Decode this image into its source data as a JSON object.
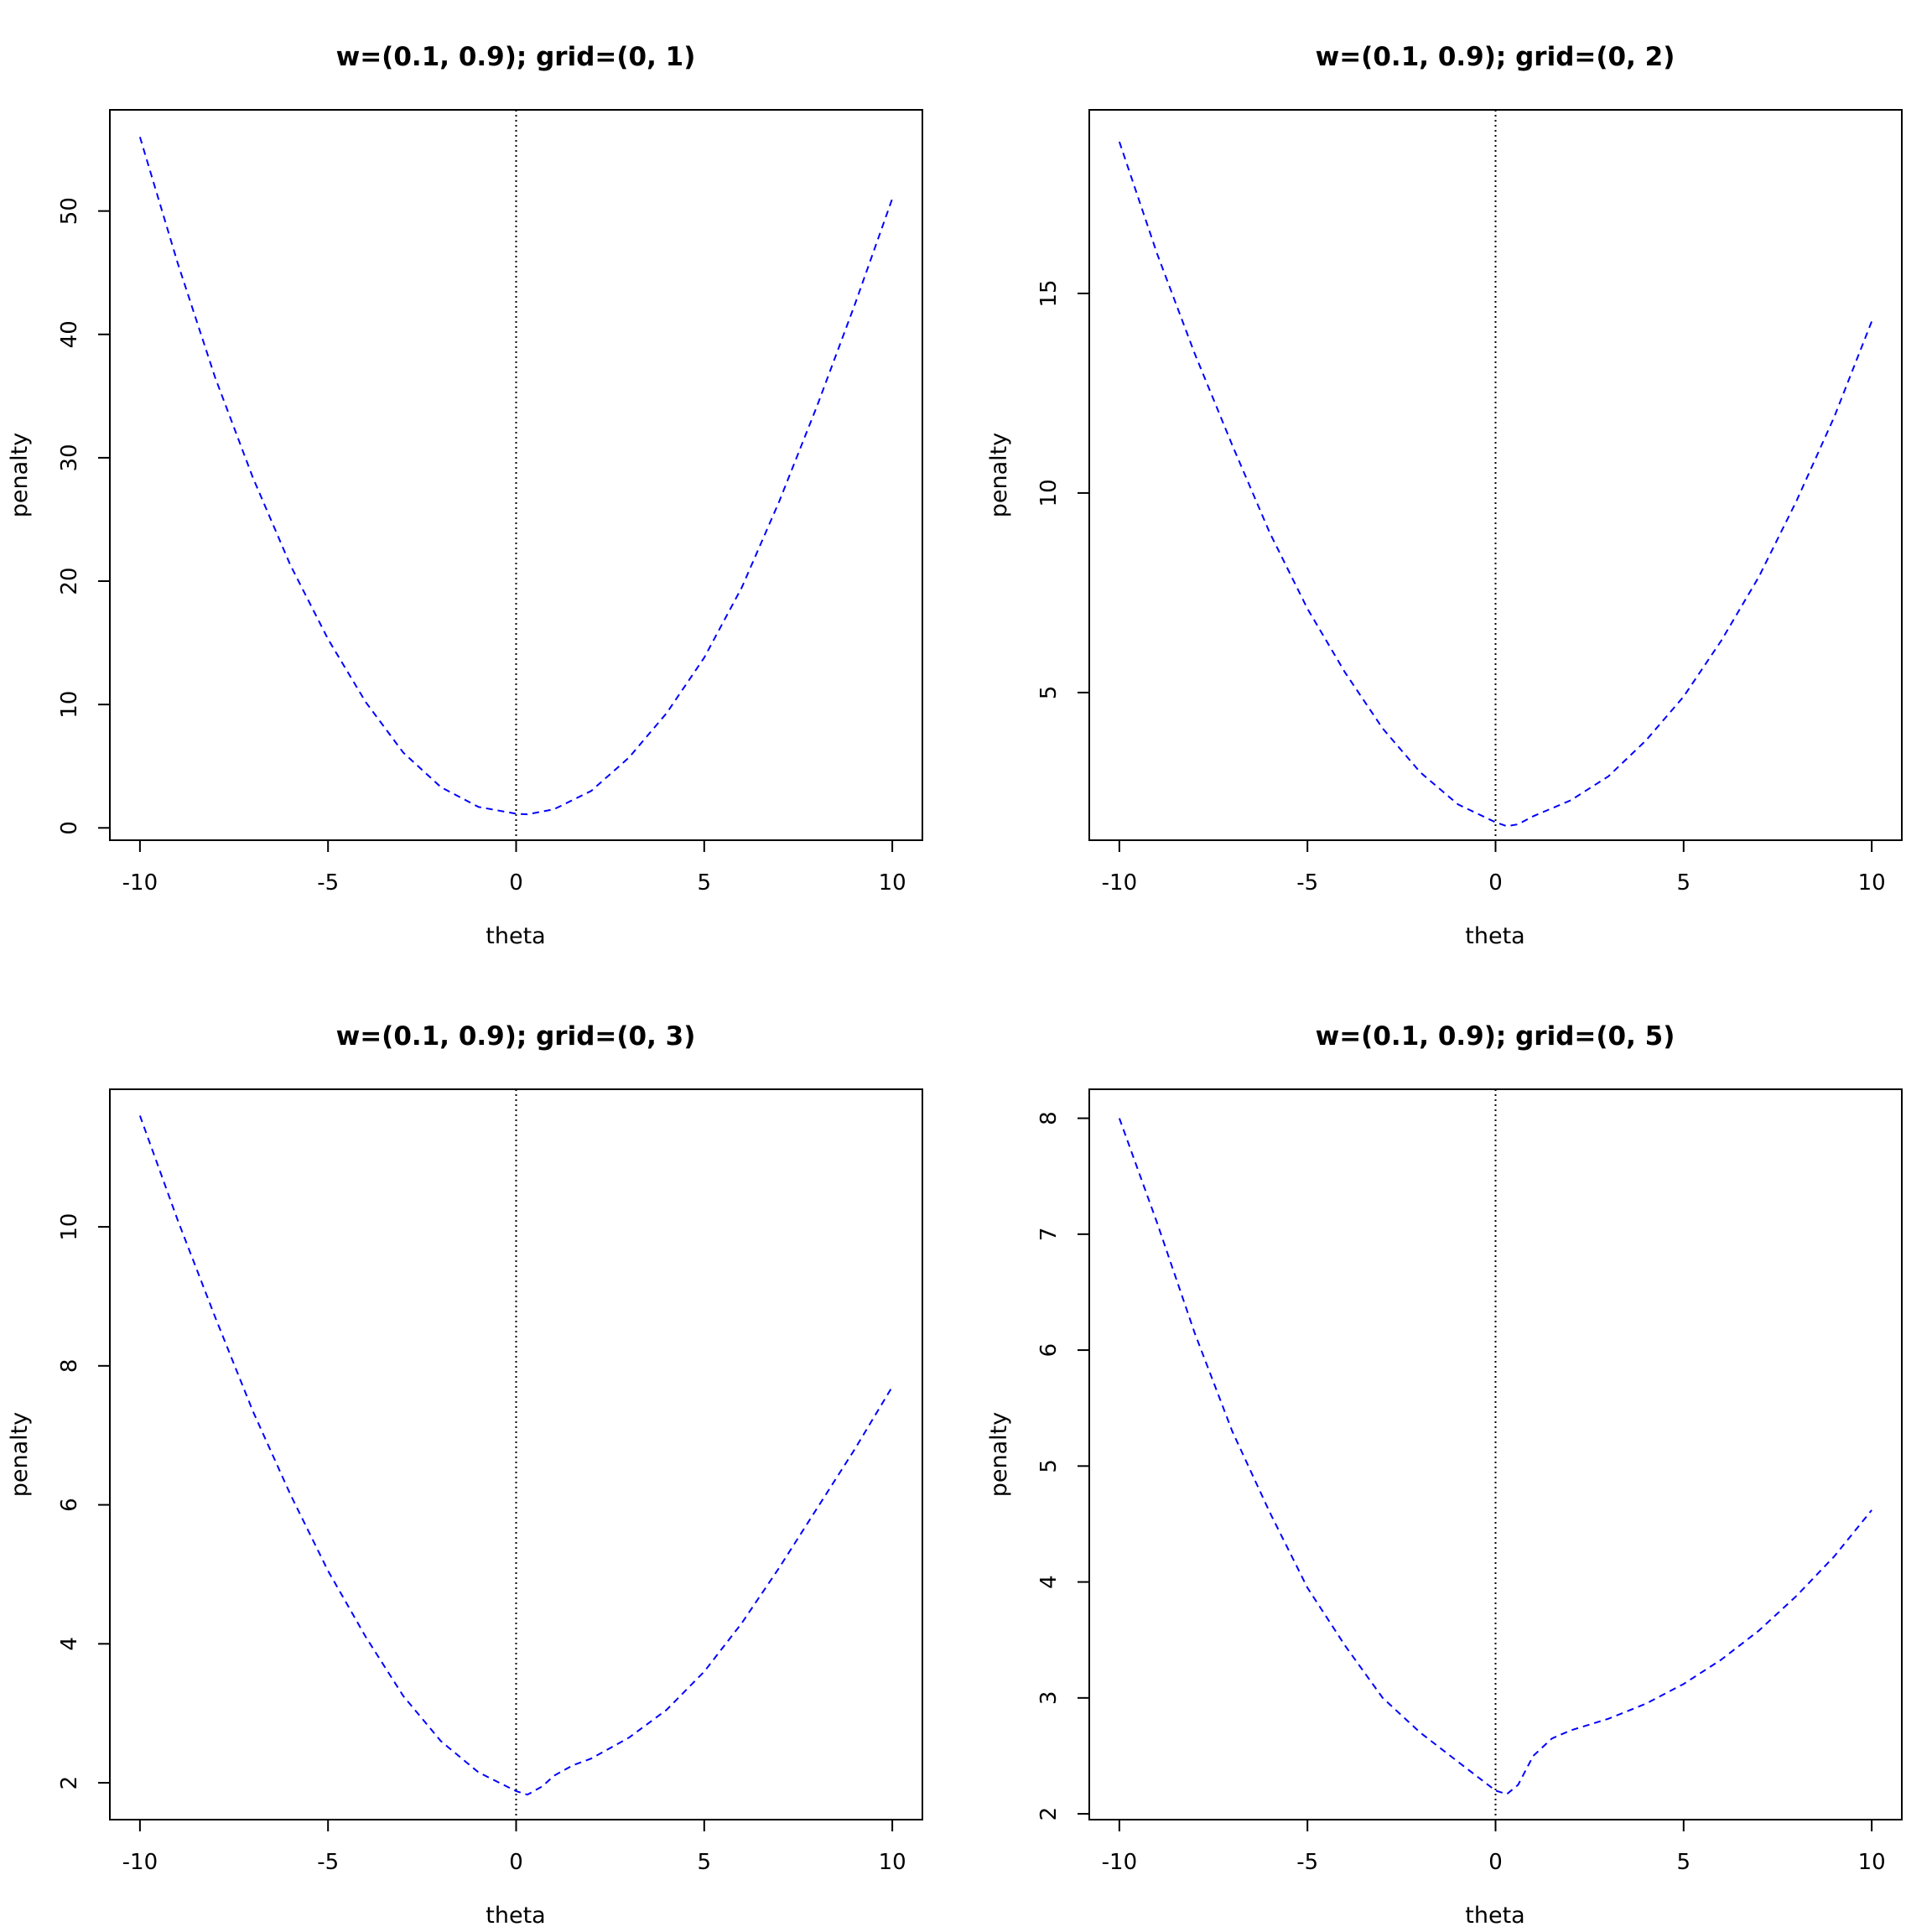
{
  "chart_data": [
    {
      "type": "line",
      "title": "w=(0.1, 0.9); grid=(0, 1)",
      "xlabel": "theta",
      "ylabel": "penalty",
      "xlim": [
        -10.8,
        10.8
      ],
      "ylim": [
        -1,
        58.2
      ],
      "xticks": [
        -10,
        -5,
        0,
        5,
        10
      ],
      "yticks": [
        0,
        10,
        20,
        30,
        40,
        50
      ],
      "vline": 0,
      "line_color": "#0000ff",
      "series": [
        {
          "x": [
            -10,
            -9,
            -8,
            -7,
            -6,
            -5,
            -4,
            -3,
            -2,
            -1,
            0,
            0.3,
            1,
            2,
            3,
            4,
            5,
            6,
            7,
            8,
            9,
            10
          ],
          "y": [
            56.0,
            45.8,
            36.5,
            28.4,
            21.3,
            15.3,
            10.2,
            6.1,
            3.3,
            1.7,
            1.15,
            1.1,
            1.5,
            3.0,
            5.7,
            9.3,
            13.8,
            19.5,
            26.5,
            34.2,
            42.4,
            51.0
          ]
        }
      ]
    },
    {
      "type": "line",
      "title": "w=(0.1, 0.9); grid=(0, 2)",
      "xlabel": "theta",
      "ylabel": "penalty",
      "xlim": [
        -10.8,
        10.8
      ],
      "ylim": [
        1.3,
        19.6
      ],
      "xticks": [
        -10,
        -5,
        0,
        5,
        10
      ],
      "yticks": [
        5,
        10,
        15
      ],
      "vline": 0,
      "line_color": "#0000ff",
      "series": [
        {
          "x": [
            -10,
            -9,
            -8,
            -7,
            -6,
            -5,
            -4,
            -3,
            -2,
            -1,
            0,
            0.3,
            0.6,
            1,
            2,
            3,
            4,
            5,
            6,
            7,
            8,
            9,
            10
          ],
          "y": [
            18.8,
            16.0,
            13.5,
            11.2,
            9.0,
            7.1,
            5.5,
            4.1,
            3.0,
            2.2,
            1.75,
            1.65,
            1.7,
            1.9,
            2.3,
            2.9,
            3.8,
            4.9,
            6.3,
            7.9,
            9.8,
            11.9,
            14.3
          ]
        }
      ]
    },
    {
      "type": "line",
      "title": "w=(0.1, 0.9); grid=(0, 3)",
      "xlabel": "theta",
      "ylabel": "penalty",
      "xlim": [
        -10.8,
        10.8
      ],
      "ylim": [
        1.47,
        11.98
      ],
      "xticks": [
        -10,
        -5,
        0,
        5,
        10
      ],
      "yticks": [
        2,
        4,
        6,
        8,
        10
      ],
      "vline": 0,
      "line_color": "#0000ff",
      "series": [
        {
          "x": [
            -10,
            -9,
            -8,
            -7,
            -6,
            -5,
            -4,
            -3,
            -2,
            -1,
            0,
            0.3,
            0.7,
            1,
            1.5,
            2,
            3,
            4,
            5,
            6,
            7,
            8,
            9,
            10
          ],
          "y": [
            11.6,
            10.1,
            8.7,
            7.35,
            6.15,
            5.05,
            4.1,
            3.25,
            2.6,
            2.15,
            1.88,
            1.83,
            1.95,
            2.1,
            2.25,
            2.35,
            2.65,
            3.05,
            3.6,
            4.3,
            5.1,
            5.95,
            6.8,
            7.7
          ]
        }
      ]
    },
    {
      "type": "line",
      "title": "w=(0.1, 0.9); grid=(0, 5)",
      "xlabel": "theta",
      "ylabel": "penalty",
      "xlim": [
        -10.8,
        10.8
      ],
      "ylim": [
        1.95,
        8.25
      ],
      "xticks": [
        -10,
        -5,
        0,
        5,
        10
      ],
      "yticks": [
        2,
        3,
        4,
        5,
        6,
        7,
        8
      ],
      "vline": 0,
      "line_color": "#0000ff",
      "series": [
        {
          "x": [
            -10,
            -9,
            -8,
            -7,
            -6,
            -5,
            -4,
            -3,
            -2,
            -1,
            0,
            0.3,
            0.6,
            1,
            1.5,
            2,
            3,
            4,
            5,
            6,
            7,
            8,
            9,
            10
          ],
          "y": [
            8.0,
            7.1,
            6.15,
            5.3,
            4.6,
            3.95,
            3.45,
            3.0,
            2.7,
            2.45,
            2.2,
            2.17,
            2.25,
            2.5,
            2.65,
            2.72,
            2.82,
            2.95,
            3.12,
            3.33,
            3.58,
            3.88,
            4.22,
            4.62
          ]
        }
      ]
    }
  ]
}
